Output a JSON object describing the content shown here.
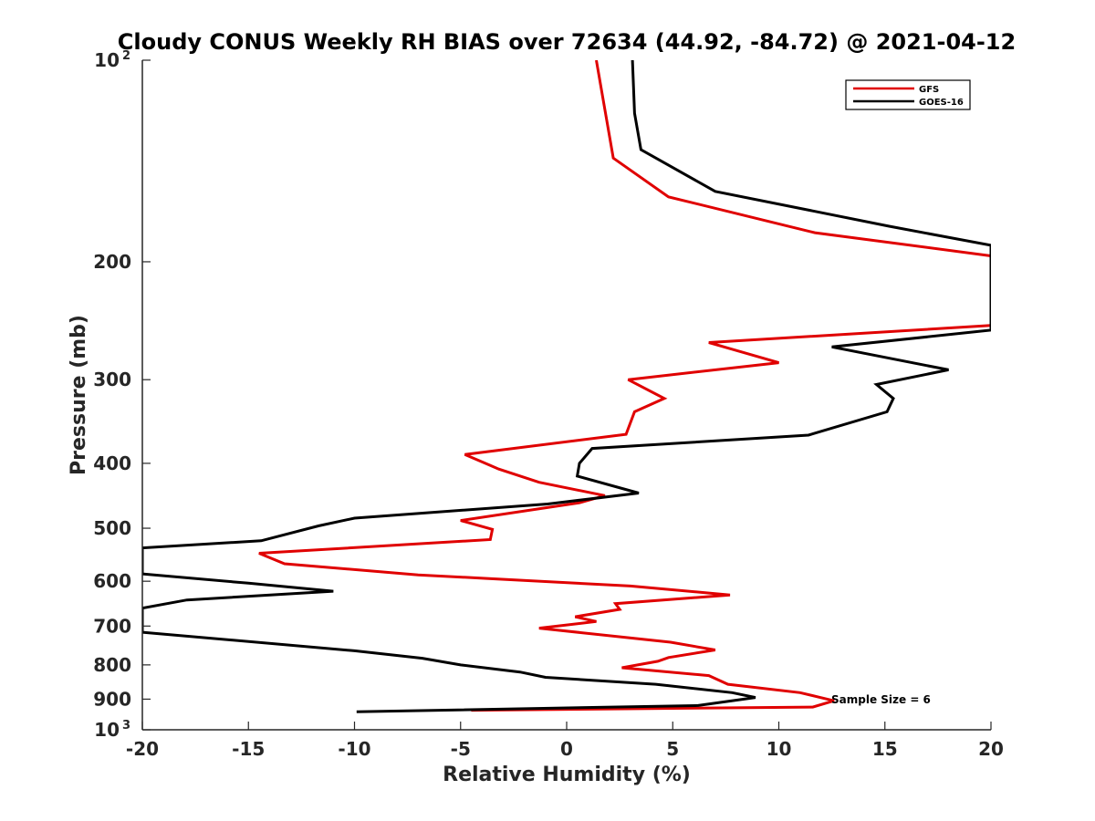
{
  "chart_data": {
    "type": "line",
    "title": "Cloudy CONUS Weekly RH BIAS over 72634 (44.92, -84.72) @ 2021-04-12",
    "xlabel": "Relative Humidity (%)",
    "ylabel": "Pressure (mb)",
    "xlim": [
      -20,
      20
    ],
    "ylim": [
      100,
      1000
    ],
    "y_scale": "log",
    "y_reversed": true,
    "grid": false,
    "legend_position": "top-right",
    "annotation": "Sample Size = 6",
    "x_ticks": [
      "-20",
      "-15",
      "-10",
      "-5",
      "0",
      "5",
      "10",
      "15",
      "20"
    ],
    "y_ticks": [
      {
        "value": 100,
        "base": "10",
        "exp": "2"
      },
      {
        "value": 200,
        "label": "200"
      },
      {
        "value": 300,
        "label": "300"
      },
      {
        "value": 400,
        "label": "400"
      },
      {
        "value": 500,
        "label": "500"
      },
      {
        "value": 600,
        "label": "600"
      },
      {
        "value": 700,
        "label": "700"
      },
      {
        "value": 800,
        "label": "800"
      },
      {
        "value": 900,
        "label": "900"
      },
      {
        "value": 1000,
        "base": "10",
        "exp": "3"
      }
    ],
    "series": [
      {
        "name": "GFS",
        "color": "#e00000",
        "points": [
          [
            1.4,
            100
          ],
          [
            2.2,
            140
          ],
          [
            4.8,
            160
          ],
          [
            11.7,
            181
          ],
          [
            20.0,
            196
          ],
          [
            20.0,
            249
          ],
          [
            6.7,
            264
          ],
          [
            10.0,
            283
          ],
          [
            2.9,
            300
          ],
          [
            4.6,
            320
          ],
          [
            3.2,
            335
          ],
          [
            2.8,
            362
          ],
          [
            -4.8,
            388
          ],
          [
            -3.2,
            408
          ],
          [
            -1.3,
            427
          ],
          [
            1.8,
            447
          ],
          [
            0.6,
            458
          ],
          [
            -5.0,
            487
          ],
          [
            -3.5,
            502
          ],
          [
            -3.6,
            520
          ],
          [
            -14.5,
            545
          ],
          [
            -13.3,
            565
          ],
          [
            -7.0,
            587
          ],
          [
            3.0,
            610
          ],
          [
            7.7,
            629
          ],
          [
            2.3,
            648
          ],
          [
            2.5,
            661
          ],
          [
            0.4,
            678
          ],
          [
            1.4,
            689
          ],
          [
            -1.3,
            705
          ],
          [
            4.9,
            740
          ],
          [
            7.0,
            760
          ],
          [
            4.8,
            780
          ],
          [
            4.3,
            790
          ],
          [
            2.6,
            808
          ],
          [
            6.7,
            830
          ],
          [
            7.6,
            855
          ],
          [
            11.0,
            880
          ],
          [
            12.6,
            905
          ],
          [
            11.6,
            925
          ],
          [
            -4.5,
            935
          ]
        ]
      },
      {
        "name": "GOES-16",
        "color": "#000000",
        "points": [
          [
            3.1,
            100
          ],
          [
            3.2,
            120
          ],
          [
            3.5,
            136
          ],
          [
            7.0,
            157
          ],
          [
            15.2,
            177
          ],
          [
            20.0,
            189
          ],
          [
            20.0,
            253
          ],
          [
            12.5,
            268
          ],
          [
            18.0,
            290
          ],
          [
            14.6,
            305
          ],
          [
            15.4,
            320
          ],
          [
            15.1,
            335
          ],
          [
            11.4,
            363
          ],
          [
            1.2,
            380
          ],
          [
            0.6,
            400
          ],
          [
            0.5,
            418
          ],
          [
            3.4,
            443
          ],
          [
            -0.9,
            460
          ],
          [
            -10.0,
            483
          ],
          [
            -11.7,
            496
          ],
          [
            -14.4,
            522
          ],
          [
            -20.0,
            535
          ],
          [
            -20.0,
            585
          ],
          [
            -15.0,
            604
          ],
          [
            -11.0,
            621
          ],
          [
            -17.9,
            640
          ],
          [
            -20.0,
            658
          ],
          [
            -20.0,
            715
          ],
          [
            -10.0,
            762
          ],
          [
            -6.8,
            782
          ],
          [
            -5.0,
            800
          ],
          [
            -2.2,
            820
          ],
          [
            -1.0,
            835
          ],
          [
            4.2,
            855
          ],
          [
            7.8,
            880
          ],
          [
            8.9,
            895
          ],
          [
            6.2,
            920
          ],
          [
            -9.9,
            940
          ]
        ]
      }
    ]
  }
}
